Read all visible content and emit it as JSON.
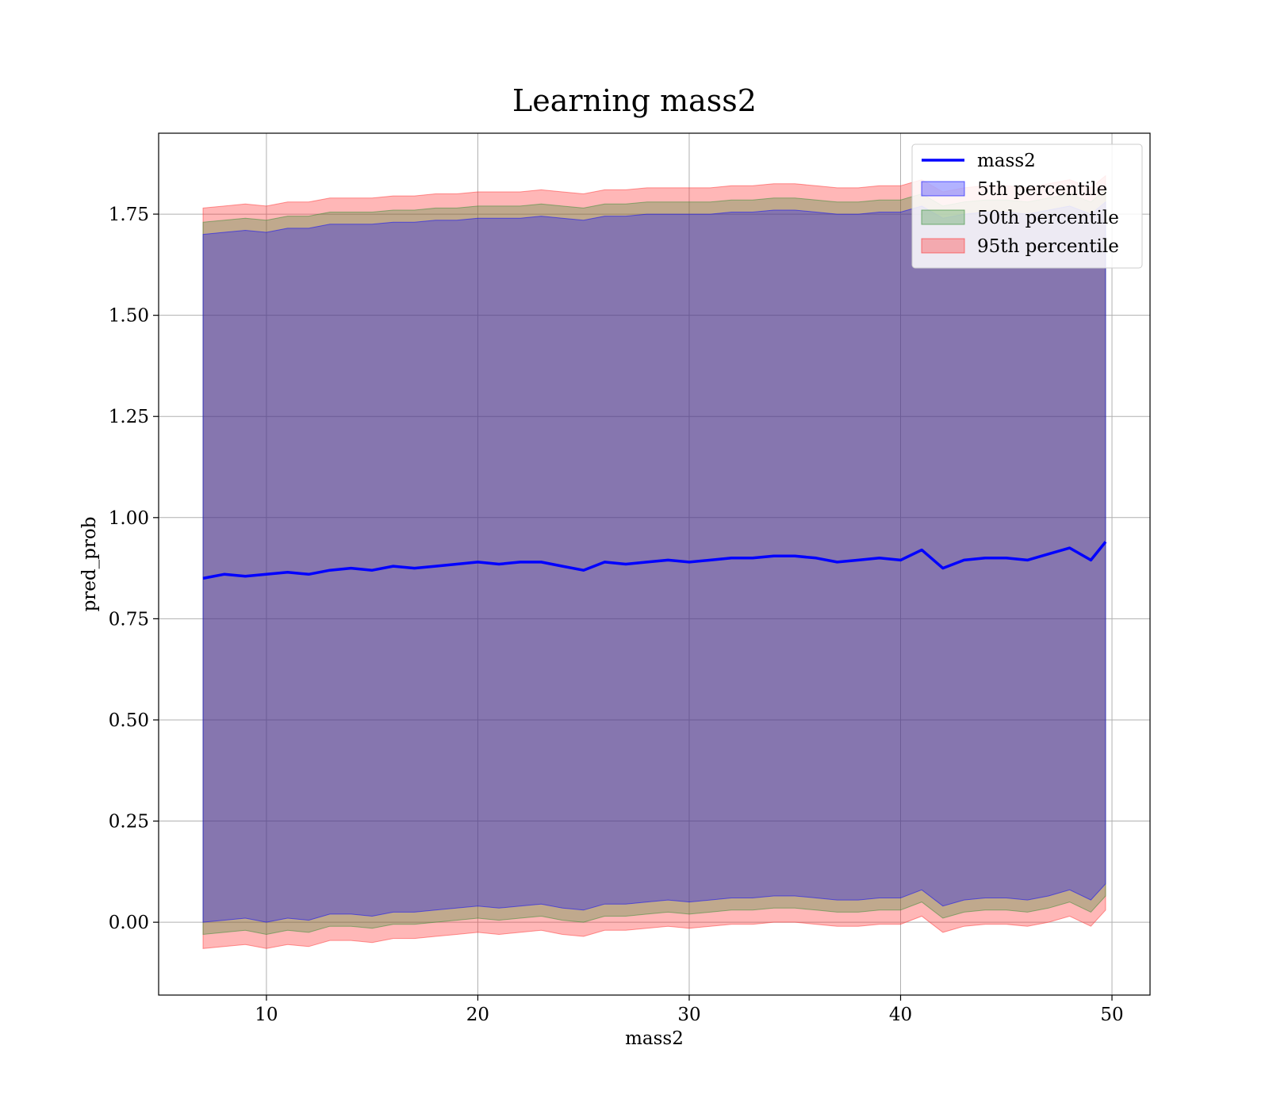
{
  "chart_data": {
    "type": "area",
    "title": "Learning mass2",
    "xlabel": "mass2",
    "ylabel": "pred_prob",
    "xlim": [
      4.9,
      51.8
    ],
    "ylim": [
      -0.18,
      1.95
    ],
    "xticks": [
      10,
      20,
      30,
      40,
      50
    ],
    "xtick_labels": [
      "10",
      "20",
      "30",
      "40",
      "50"
    ],
    "yticks": [
      0.0,
      0.25,
      0.5,
      0.75,
      1.0,
      1.25,
      1.5,
      1.75
    ],
    "ytick_labels": [
      "0.00",
      "0.25",
      "0.50",
      "0.75",
      "1.00",
      "1.25",
      "1.50",
      "1.75"
    ],
    "grid": true,
    "legend_position": "top-right",
    "series": [
      {
        "name": "mass2",
        "kind": "line",
        "color": "#0000ff",
        "x": [
          7,
          8,
          9,
          10,
          11,
          12,
          13,
          14,
          15,
          16,
          17,
          18,
          19,
          20,
          21,
          22,
          23,
          24,
          25,
          26,
          27,
          28,
          29,
          30,
          31,
          32,
          33,
          34,
          35,
          36,
          37,
          38,
          39,
          40,
          41,
          42,
          43,
          44,
          45,
          46,
          47,
          48,
          49,
          49.7
        ],
        "y": [
          0.85,
          0.86,
          0.855,
          0.86,
          0.865,
          0.86,
          0.87,
          0.875,
          0.87,
          0.88,
          0.875,
          0.88,
          0.885,
          0.89,
          0.885,
          0.89,
          0.89,
          0.88,
          0.87,
          0.89,
          0.885,
          0.89,
          0.895,
          0.89,
          0.895,
          0.9,
          0.9,
          0.905,
          0.905,
          0.9,
          0.89,
          0.895,
          0.9,
          0.895,
          0.92,
          0.875,
          0.895,
          0.9,
          0.9,
          0.895,
          0.91,
          0.925,
          0.895,
          0.94
        ]
      },
      {
        "name": "5th percentile",
        "kind": "band",
        "color": "#0000ff",
        "opacity": 0.3,
        "x": [
          7,
          8,
          9,
          10,
          11,
          12,
          13,
          14,
          15,
          16,
          17,
          18,
          19,
          20,
          21,
          22,
          23,
          24,
          25,
          26,
          27,
          28,
          29,
          30,
          31,
          32,
          33,
          34,
          35,
          36,
          37,
          38,
          39,
          40,
          41,
          42,
          43,
          44,
          45,
          46,
          47,
          48,
          49,
          49.7
        ],
        "lower": [
          0.0,
          0.005,
          0.01,
          0.0,
          0.01,
          0.005,
          0.02,
          0.02,
          0.015,
          0.025,
          0.025,
          0.03,
          0.035,
          0.04,
          0.035,
          0.04,
          0.045,
          0.035,
          0.03,
          0.045,
          0.045,
          0.05,
          0.055,
          0.05,
          0.055,
          0.06,
          0.06,
          0.065,
          0.065,
          0.06,
          0.055,
          0.055,
          0.06,
          0.06,
          0.08,
          0.04,
          0.055,
          0.06,
          0.06,
          0.055,
          0.065,
          0.08,
          0.055,
          0.095
        ],
        "upper": [
          1.7,
          1.705,
          1.71,
          1.705,
          1.715,
          1.715,
          1.725,
          1.725,
          1.725,
          1.73,
          1.73,
          1.735,
          1.735,
          1.74,
          1.74,
          1.74,
          1.745,
          1.74,
          1.735,
          1.745,
          1.745,
          1.75,
          1.75,
          1.75,
          1.75,
          1.755,
          1.755,
          1.76,
          1.76,
          1.755,
          1.75,
          1.75,
          1.755,
          1.755,
          1.77,
          1.74,
          1.75,
          1.755,
          1.755,
          1.75,
          1.76,
          1.77,
          1.75,
          1.78
        ]
      },
      {
        "name": "50th percentile",
        "kind": "band",
        "color": "#2e8b2e",
        "opacity": 0.3,
        "x": [
          7,
          8,
          9,
          10,
          11,
          12,
          13,
          14,
          15,
          16,
          17,
          18,
          19,
          20,
          21,
          22,
          23,
          24,
          25,
          26,
          27,
          28,
          29,
          30,
          31,
          32,
          33,
          34,
          35,
          36,
          37,
          38,
          39,
          40,
          41,
          42,
          43,
          44,
          45,
          46,
          47,
          48,
          49,
          49.7
        ],
        "lower": [
          -0.03,
          -0.025,
          -0.02,
          -0.03,
          -0.02,
          -0.025,
          -0.01,
          -0.01,
          -0.015,
          -0.005,
          -0.005,
          0.0,
          0.005,
          0.01,
          0.005,
          0.01,
          0.015,
          0.005,
          0.0,
          0.015,
          0.015,
          0.02,
          0.025,
          0.02,
          0.025,
          0.03,
          0.03,
          0.035,
          0.035,
          0.03,
          0.025,
          0.025,
          0.03,
          0.03,
          0.05,
          0.01,
          0.025,
          0.03,
          0.03,
          0.025,
          0.035,
          0.05,
          0.025,
          0.065
        ],
        "upper": [
          1.73,
          1.735,
          1.74,
          1.735,
          1.745,
          1.745,
          1.755,
          1.755,
          1.755,
          1.76,
          1.76,
          1.765,
          1.765,
          1.77,
          1.77,
          1.77,
          1.775,
          1.77,
          1.765,
          1.775,
          1.775,
          1.78,
          1.78,
          1.78,
          1.78,
          1.785,
          1.785,
          1.79,
          1.79,
          1.785,
          1.78,
          1.78,
          1.785,
          1.785,
          1.8,
          1.77,
          1.78,
          1.785,
          1.785,
          1.78,
          1.79,
          1.8,
          1.78,
          1.81
        ]
      },
      {
        "name": "95th percentile",
        "kind": "band",
        "color": "#ff3030",
        "opacity": 0.35,
        "x": [
          7,
          8,
          9,
          10,
          11,
          12,
          13,
          14,
          15,
          16,
          17,
          18,
          19,
          20,
          21,
          22,
          23,
          24,
          25,
          26,
          27,
          28,
          29,
          30,
          31,
          32,
          33,
          34,
          35,
          36,
          37,
          38,
          39,
          40,
          41,
          42,
          43,
          44,
          45,
          46,
          47,
          48,
          49,
          49.7
        ],
        "lower": [
          -0.065,
          -0.06,
          -0.055,
          -0.065,
          -0.055,
          -0.06,
          -0.045,
          -0.045,
          -0.05,
          -0.04,
          -0.04,
          -0.035,
          -0.03,
          -0.025,
          -0.03,
          -0.025,
          -0.02,
          -0.03,
          -0.035,
          -0.02,
          -0.02,
          -0.015,
          -0.01,
          -0.015,
          -0.01,
          -0.005,
          -0.005,
          0.0,
          0.0,
          -0.005,
          -0.01,
          -0.01,
          -0.005,
          -0.005,
          0.015,
          -0.025,
          -0.01,
          -0.005,
          -0.005,
          -0.01,
          0.0,
          0.015,
          -0.01,
          0.03
        ],
        "upper": [
          1.765,
          1.77,
          1.775,
          1.77,
          1.78,
          1.78,
          1.79,
          1.79,
          1.79,
          1.795,
          1.795,
          1.8,
          1.8,
          1.805,
          1.805,
          1.805,
          1.81,
          1.805,
          1.8,
          1.81,
          1.81,
          1.815,
          1.815,
          1.815,
          1.815,
          1.82,
          1.82,
          1.825,
          1.825,
          1.82,
          1.815,
          1.815,
          1.82,
          1.82,
          1.835,
          1.805,
          1.815,
          1.82,
          1.82,
          1.815,
          1.825,
          1.835,
          1.815,
          1.845
        ]
      }
    ]
  }
}
